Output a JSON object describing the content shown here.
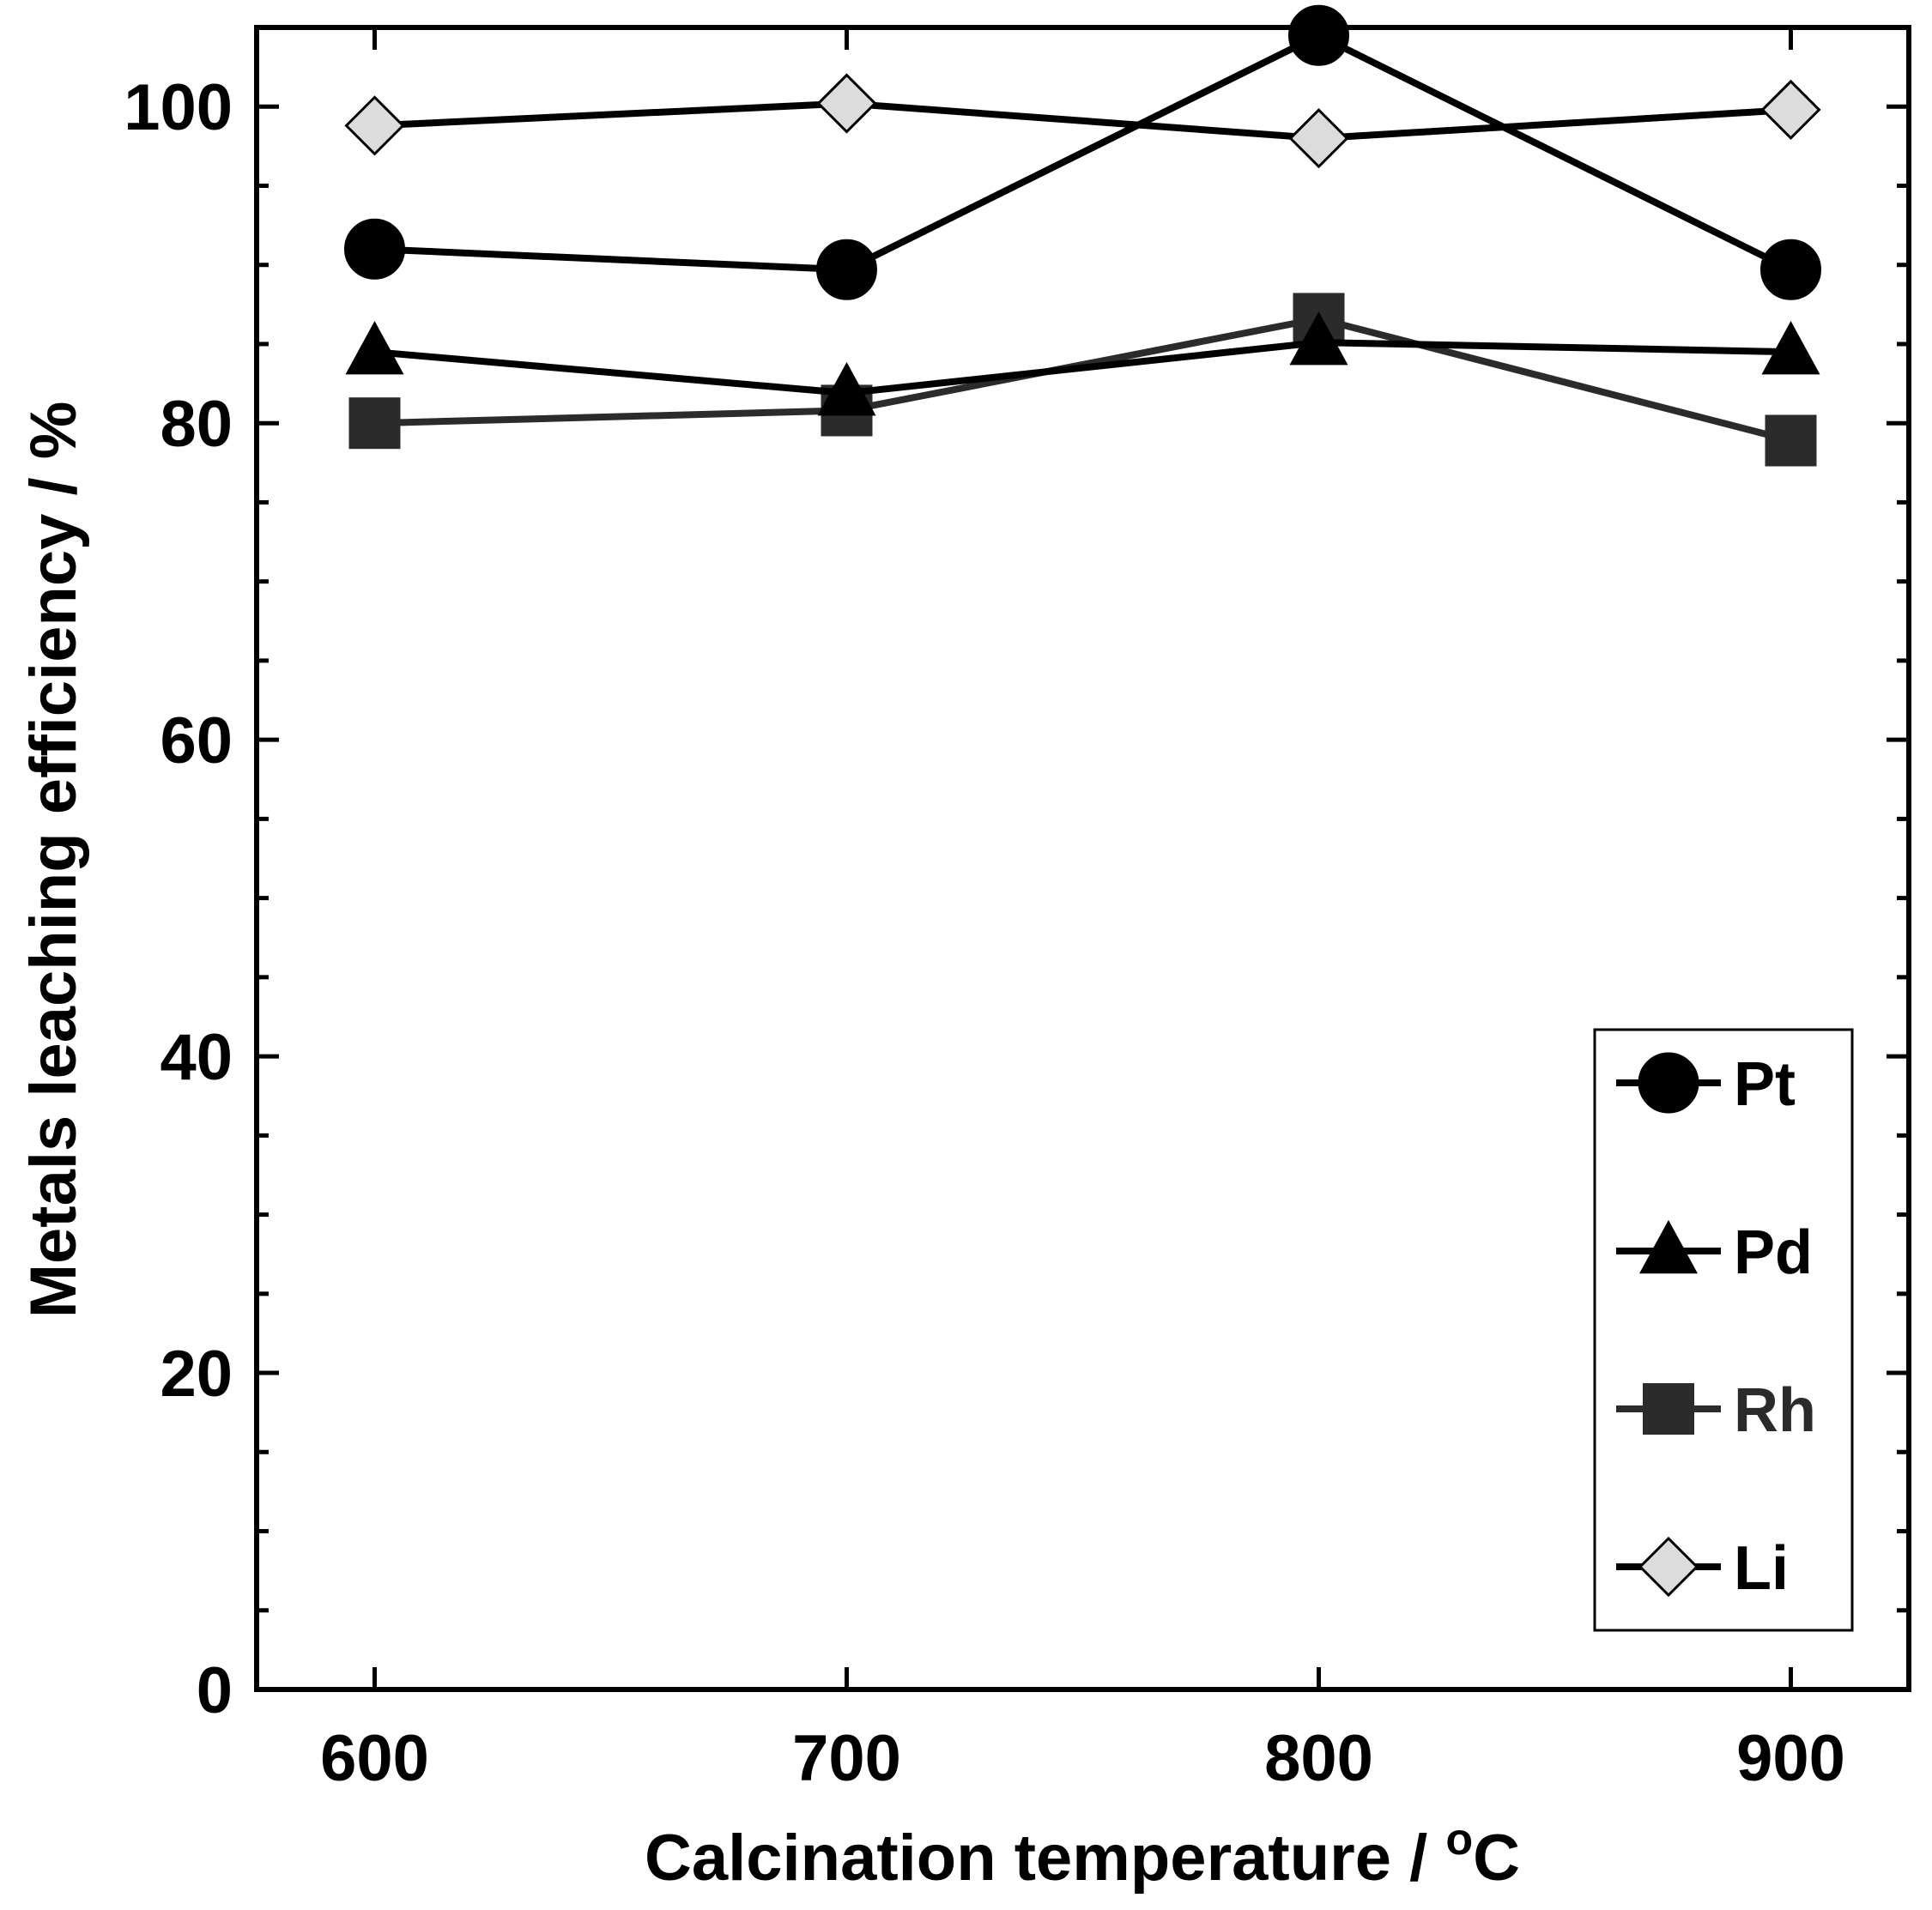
{
  "chart_data": {
    "type": "line",
    "title": "",
    "xlabel": "Calcination temperature / ",
    "xlabel_unit_sup": "o",
    "xlabel_unit": "C",
    "ylabel": "Metals leaching efficiency / %",
    "x": [
      600,
      700,
      800,
      900
    ],
    "xlim": [
      575,
      925
    ],
    "ylim": [
      0,
      105
    ],
    "x_ticks": [
      600,
      700,
      800,
      900
    ],
    "y_ticks": [
      0,
      20,
      40,
      60,
      80,
      100
    ],
    "grid": false,
    "legend_position": "bottom-right",
    "series": [
      {
        "name": "Pt",
        "marker": "circle",
        "color": "#000000",
        "fill": "#000000",
        "values": [
          91.0,
          89.7,
          104.5,
          89.7
        ]
      },
      {
        "name": "Pd",
        "marker": "triangle",
        "color": "#000000",
        "fill": "#000000",
        "values": [
          84.5,
          81.9,
          85.1,
          84.5
        ]
      },
      {
        "name": "Rh",
        "marker": "square",
        "color": "#2b2b2b",
        "fill": "#2b2b2b",
        "values": [
          80.0,
          80.8,
          86.6,
          78.9
        ]
      },
      {
        "name": "Li",
        "marker": "diamond",
        "color": "#000000",
        "fill": "#dcdcdc",
        "values": [
          98.8,
          100.2,
          98.0,
          99.8
        ]
      }
    ]
  }
}
